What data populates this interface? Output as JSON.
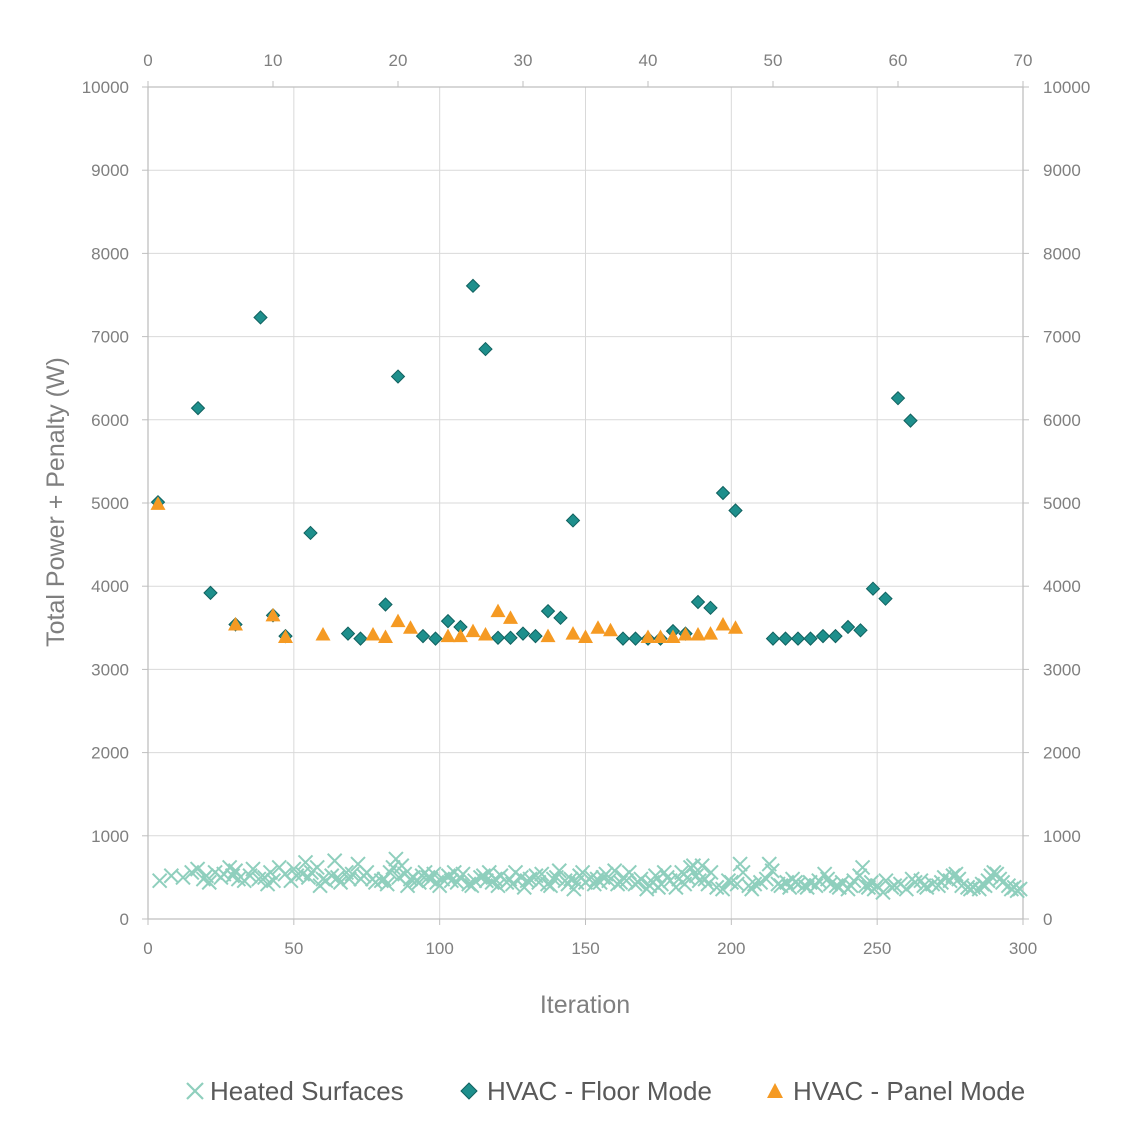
{
  "chart_data": {
    "type": "scatter",
    "title": "",
    "xlabel": "Iteration",
    "ylabel": "Total Power + Penalty (W)",
    "xlim": [
      0,
      300
    ],
    "ylim": [
      0,
      10000
    ],
    "x2lim": [
      0,
      70
    ],
    "y2lim": [
      0,
      10000
    ],
    "grid": true,
    "legend_position": "bottom",
    "x_ticks": [
      "0",
      "50",
      "100",
      "150",
      "200",
      "250",
      "300"
    ],
    "y_ticks": [
      "0",
      "1000",
      "2000",
      "3000",
      "4000",
      "5000",
      "6000",
      "7000",
      "8000",
      "9000",
      "10000"
    ],
    "x2_ticks": [
      "0",
      "10",
      "20",
      "30",
      "40",
      "50",
      "60",
      "70"
    ],
    "y2_ticks": [
      "0",
      "1000",
      "2000",
      "3000",
      "4000",
      "5000",
      "6000",
      "7000",
      "8000",
      "9000",
      "10000"
    ],
    "series": [
      {
        "name": "Heated Surfaces",
        "marker": "x",
        "color": "#8fcfbd",
        "axis": "primary",
        "points": [
          [
            4,
            460
          ],
          [
            8,
            520
          ],
          [
            12,
            500
          ],
          [
            15,
            560
          ],
          [
            17,
            600
          ],
          [
            19,
            480
          ],
          [
            20,
            520
          ],
          [
            21,
            440
          ],
          [
            23,
            560
          ],
          [
            25,
            500
          ],
          [
            26,
            540
          ],
          [
            28,
            620
          ],
          [
            29,
            520
          ],
          [
            30,
            580
          ],
          [
            31,
            480
          ],
          [
            33,
            460
          ],
          [
            35,
            520
          ],
          [
            36,
            600
          ],
          [
            38,
            480
          ],
          [
            40,
            500
          ],
          [
            41,
            420
          ],
          [
            42,
            560
          ],
          [
            43,
            460
          ],
          [
            45,
            620
          ],
          [
            47,
            540
          ],
          [
            49,
            460
          ],
          [
            50,
            600
          ],
          [
            51,
            520
          ],
          [
            53,
            540
          ],
          [
            54,
            680
          ],
          [
            55,
            500
          ],
          [
            56,
            560
          ],
          [
            58,
            620
          ],
          [
            59,
            400
          ],
          [
            60,
            480
          ],
          [
            61,
            460
          ],
          [
            63,
            520
          ],
          [
            64,
            700
          ],
          [
            65,
            500
          ],
          [
            66,
            440
          ],
          [
            68,
            560
          ],
          [
            69,
            480
          ],
          [
            70,
            540
          ],
          [
            72,
            660
          ],
          [
            73,
            480
          ],
          [
            74,
            520
          ],
          [
            75,
            560
          ],
          [
            77,
            480
          ],
          [
            78,
            440
          ],
          [
            80,
            460
          ],
          [
            81,
            480
          ],
          [
            82,
            420
          ],
          [
            83,
            560
          ],
          [
            84,
            620
          ],
          [
            85,
            720
          ],
          [
            86,
            500
          ],
          [
            87,
            640
          ],
          [
            88,
            540
          ],
          [
            89,
            400
          ],
          [
            90,
            480
          ],
          [
            91,
            500
          ],
          [
            92,
            460
          ],
          [
            93,
            440
          ],
          [
            94,
            520
          ],
          [
            95,
            560
          ],
          [
            96,
            500
          ],
          [
            97,
            480
          ],
          [
            98,
            540
          ],
          [
            99,
            440
          ],
          [
            100,
            400
          ],
          [
            101,
            480
          ],
          [
            103,
            520
          ],
          [
            104,
            460
          ],
          [
            105,
            560
          ],
          [
            106,
            440
          ],
          [
            107,
            500
          ],
          [
            108,
            540
          ],
          [
            110,
            420
          ],
          [
            111,
            400
          ],
          [
            112,
            460
          ],
          [
            114,
            500
          ],
          [
            115,
            520
          ],
          [
            116,
            460
          ],
          [
            117,
            560
          ],
          [
            118,
            440
          ],
          [
            119,
            480
          ],
          [
            120,
            400
          ],
          [
            121,
            520
          ],
          [
            123,
            440
          ],
          [
            124,
            480
          ],
          [
            125,
            420
          ],
          [
            126,
            560
          ],
          [
            128,
            500
          ],
          [
            129,
            380
          ],
          [
            130,
            460
          ],
          [
            131,
            480
          ],
          [
            133,
            520
          ],
          [
            134,
            440
          ],
          [
            135,
            540
          ],
          [
            137,
            420
          ],
          [
            138,
            400
          ],
          [
            139,
            480
          ],
          [
            140,
            500
          ],
          [
            141,
            580
          ],
          [
            143,
            460
          ],
          [
            144,
            420
          ],
          [
            145,
            480
          ],
          [
            146,
            360
          ],
          [
            147,
            440
          ],
          [
            148,
            520
          ],
          [
            149,
            560
          ],
          [
            150,
            440
          ],
          [
            152,
            500
          ],
          [
            153,
            420
          ],
          [
            154,
            480
          ],
          [
            155,
            440
          ],
          [
            156,
            500
          ],
          [
            157,
            540
          ],
          [
            158,
            460
          ],
          [
            160,
            580
          ],
          [
            161,
            420
          ],
          [
            162,
            440
          ],
          [
            163,
            500
          ],
          [
            164,
            460
          ],
          [
            165,
            560
          ],
          [
            167,
            420
          ],
          [
            168,
            440
          ],
          [
            169,
            480
          ],
          [
            171,
            360
          ],
          [
            172,
            400
          ],
          [
            173,
            440
          ],
          [
            174,
            520
          ],
          [
            175,
            380
          ],
          [
            176,
            420
          ],
          [
            177,
            560
          ],
          [
            178,
            500
          ],
          [
            179,
            460
          ],
          [
            181,
            380
          ],
          [
            182,
            480
          ],
          [
            183,
            560
          ],
          [
            184,
            420
          ],
          [
            185,
            500
          ],
          [
            186,
            620
          ],
          [
            187,
            640
          ],
          [
            188,
            520
          ],
          [
            189,
            460
          ],
          [
            190,
            640
          ],
          [
            191,
            480
          ],
          [
            192,
            420
          ],
          [
            193,
            560
          ],
          [
            195,
            380
          ],
          [
            197,
            360
          ],
          [
            199,
            460
          ],
          [
            200,
            440
          ],
          [
            202,
            420
          ],
          [
            203,
            660
          ],
          [
            204,
            560
          ],
          [
            206,
            400
          ],
          [
            207,
            360
          ],
          [
            208,
            420
          ],
          [
            210,
            440
          ],
          [
            212,
            480
          ],
          [
            213,
            660
          ],
          [
            214,
            580
          ],
          [
            216,
            420
          ],
          [
            217,
            400
          ],
          [
            219,
            440
          ],
          [
            220,
            380
          ],
          [
            221,
            480
          ],
          [
            222,
            440
          ],
          [
            223,
            420
          ],
          [
            225,
            400
          ],
          [
            226,
            380
          ],
          [
            227,
            440
          ],
          [
            229,
            400
          ],
          [
            230,
            460
          ],
          [
            232,
            540
          ],
          [
            233,
            480
          ],
          [
            234,
            420
          ],
          [
            236,
            400
          ],
          [
            237,
            380
          ],
          [
            238,
            440
          ],
          [
            240,
            360
          ],
          [
            241,
            400
          ],
          [
            242,
            460
          ],
          [
            244,
            520
          ],
          [
            245,
            620
          ],
          [
            246,
            400
          ],
          [
            247,
            380
          ],
          [
            248,
            440
          ],
          [
            249,
            360
          ],
          [
            250,
            400
          ],
          [
            252,
            320
          ],
          [
            253,
            460
          ],
          [
            255,
            380
          ],
          [
            256,
            400
          ],
          [
            258,
            420
          ],
          [
            260,
            360
          ],
          [
            262,
            480
          ],
          [
            263,
            440
          ],
          [
            265,
            460
          ],
          [
            266,
            400
          ],
          [
            267,
            380
          ],
          [
            269,
            420
          ],
          [
            271,
            400
          ],
          [
            272,
            440
          ],
          [
            273,
            500
          ],
          [
            275,
            460
          ],
          [
            276,
            520
          ],
          [
            277,
            540
          ],
          [
            278,
            480
          ],
          [
            279,
            400
          ],
          [
            281,
            380
          ],
          [
            282,
            360
          ],
          [
            283,
            380
          ],
          [
            285,
            360
          ],
          [
            286,
            420
          ],
          [
            287,
            400
          ],
          [
            288,
            460
          ],
          [
            289,
            520
          ],
          [
            290,
            560
          ],
          [
            291,
            540
          ],
          [
            292,
            480
          ],
          [
            293,
            440
          ],
          [
            295,
            400
          ],
          [
            296,
            360
          ],
          [
            297,
            380
          ],
          [
            298,
            340
          ],
          [
            299,
            360
          ]
        ]
      },
      {
        "name": "HVAC - Floor Mode",
        "marker": "diamond",
        "color": "#1e8f8c",
        "stroke": "#11615f",
        "axis": "secondary",
        "points": [
          [
            0.8,
            5010
          ],
          [
            4,
            6140
          ],
          [
            5,
            3920
          ],
          [
            7,
            3540
          ],
          [
            9,
            7230
          ],
          [
            10,
            3650
          ],
          [
            11,
            3400
          ],
          [
            13,
            4640
          ],
          [
            16,
            3430
          ],
          [
            17,
            3370
          ],
          [
            19,
            3780
          ],
          [
            20,
            6520
          ],
          [
            22,
            3400
          ],
          [
            23,
            3370
          ],
          [
            24,
            3580
          ],
          [
            25,
            3510
          ],
          [
            26,
            7610
          ],
          [
            27,
            6850
          ],
          [
            28,
            3380
          ],
          [
            29,
            3380
          ],
          [
            30,
            3430
          ],
          [
            31,
            3400
          ],
          [
            32,
            3700
          ],
          [
            33,
            3620
          ],
          [
            34,
            4790
          ],
          [
            38,
            3370
          ],
          [
            39,
            3370
          ],
          [
            40,
            3370
          ],
          [
            41,
            3370
          ],
          [
            42,
            3460
          ],
          [
            43,
            3430
          ],
          [
            44,
            3810
          ],
          [
            45,
            3740
          ],
          [
            46,
            5120
          ],
          [
            47,
            4910
          ],
          [
            50,
            3370
          ],
          [
            51,
            3370
          ],
          [
            52,
            3370
          ],
          [
            53,
            3370
          ],
          [
            54,
            3400
          ],
          [
            55,
            3400
          ],
          [
            56,
            3510
          ],
          [
            57,
            3470
          ],
          [
            58,
            3970
          ],
          [
            59,
            3850
          ],
          [
            60,
            6260
          ],
          [
            61,
            5990
          ]
        ]
      },
      {
        "name": "HVAC - Panel Mode",
        "marker": "triangle",
        "color": "#f59a23",
        "axis": "secondary",
        "points": [
          [
            0.8,
            4990
          ],
          [
            7,
            3540
          ],
          [
            10,
            3650
          ],
          [
            11,
            3390
          ],
          [
            14,
            3420
          ],
          [
            18,
            3420
          ],
          [
            19,
            3390
          ],
          [
            20,
            3580
          ],
          [
            21,
            3500
          ],
          [
            24,
            3400
          ],
          [
            25,
            3400
          ],
          [
            26,
            3460
          ],
          [
            27,
            3420
          ],
          [
            28,
            3700
          ],
          [
            29,
            3620
          ],
          [
            32,
            3400
          ],
          [
            34,
            3430
          ],
          [
            35,
            3390
          ],
          [
            36,
            3500
          ],
          [
            37,
            3470
          ],
          [
            40,
            3390
          ],
          [
            41,
            3390
          ],
          [
            42,
            3390
          ],
          [
            43,
            3420
          ],
          [
            44,
            3420
          ],
          [
            45,
            3430
          ],
          [
            46,
            3540
          ],
          [
            47,
            3500
          ]
        ]
      }
    ]
  }
}
